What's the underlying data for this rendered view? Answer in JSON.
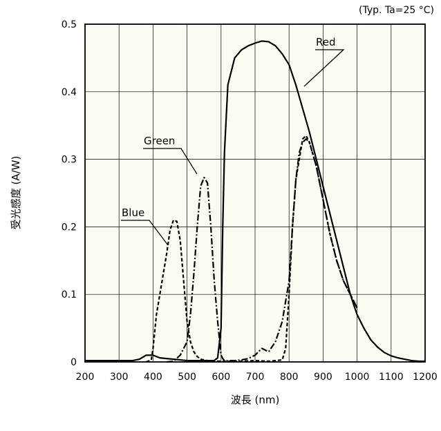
{
  "chart_data": {
    "type": "line",
    "condition": "(Typ. Ta=25 °C)",
    "xlabel": "波長 (nm)",
    "ylabel": "受光感度 (A/W)",
    "xlim": [
      200,
      1200
    ],
    "ylim": [
      0,
      0.5
    ],
    "x_ticks": [
      "200",
      "300",
      "400",
      "500",
      "600",
      "700",
      "800",
      "900",
      "1000",
      "1100",
      "1200"
    ],
    "y_ticks": [
      "0",
      "0.1",
      "0.2",
      "0.3",
      "0.4",
      "0.5"
    ],
    "grid": true,
    "background": "#fbfaf3",
    "series": [
      {
        "name": "Red",
        "style": "solid",
        "color": "#000000",
        "x": [
          200,
          340,
          360,
          380,
          400,
          420,
          500,
          580,
          590,
          600,
          605,
          610,
          620,
          640,
          660,
          680,
          700,
          720,
          740,
          760,
          780,
          800,
          820,
          840,
          860,
          880,
          900,
          920,
          940,
          960,
          980,
          1000,
          1020,
          1040,
          1060,
          1080,
          1100,
          1120,
          1140,
          1160,
          1180,
          1200
        ],
        "y": [
          0.002,
          0.002,
          0.004,
          0.01,
          0.01,
          0.006,
          0.002,
          0.002,
          0.006,
          0.05,
          0.2,
          0.31,
          0.41,
          0.45,
          0.462,
          0.468,
          0.472,
          0.475,
          0.474,
          0.468,
          0.456,
          0.44,
          0.41,
          0.375,
          0.34,
          0.3,
          0.26,
          0.22,
          0.18,
          0.14,
          0.1,
          0.07,
          0.05,
          0.033,
          0.022,
          0.014,
          0.009,
          0.006,
          0.004,
          0.002,
          0.001,
          0.001
        ]
      },
      {
        "name": "Green",
        "style": "dash-dot",
        "color": "#000000",
        "x": [
          440,
          460,
          480,
          500,
          510,
          520,
          530,
          540,
          550,
          560,
          570,
          580,
          590,
          600,
          605,
          610,
          640,
          660,
          680,
          700,
          720,
          740,
          760,
          780,
          800,
          810,
          820,
          830,
          840,
          850,
          860,
          880,
          900,
          920,
          940,
          960,
          980,
          1000
        ],
        "y": [
          0.0,
          0.001,
          0.01,
          0.03,
          0.07,
          0.13,
          0.2,
          0.26,
          0.273,
          0.265,
          0.2,
          0.12,
          0.06,
          0.01,
          0.005,
          0.002,
          0.002,
          0.003,
          0.005,
          0.01,
          0.02,
          0.015,
          0.03,
          0.06,
          0.12,
          0.2,
          0.27,
          0.31,
          0.325,
          0.33,
          0.325,
          0.29,
          0.24,
          0.19,
          0.15,
          0.12,
          0.1,
          0.08
        ]
      },
      {
        "name": "Blue",
        "style": "dashed",
        "color": "#000000",
        "x": [
          380,
          395,
          400,
          410,
          420,
          440,
          450,
          460,
          470,
          480,
          490,
          500,
          510,
          520,
          530,
          540,
          560,
          600,
          650,
          700,
          740,
          760,
          780,
          790,
          800,
          810,
          820,
          830,
          840,
          850,
          860,
          880,
          900,
          920,
          940,
          960,
          980,
          1000
        ],
        "y": [
          0.0,
          0.003,
          0.02,
          0.07,
          0.1,
          0.16,
          0.195,
          0.21,
          0.208,
          0.18,
          0.12,
          0.06,
          0.03,
          0.015,
          0.008,
          0.004,
          0.002,
          0.001,
          0.001,
          0.002,
          0.001,
          0.002,
          0.003,
          0.02,
          0.1,
          0.2,
          0.27,
          0.3,
          0.33,
          0.335,
          0.325,
          0.29,
          0.24,
          0.19,
          0.15,
          0.12,
          0.1,
          0.08
        ]
      }
    ]
  }
}
